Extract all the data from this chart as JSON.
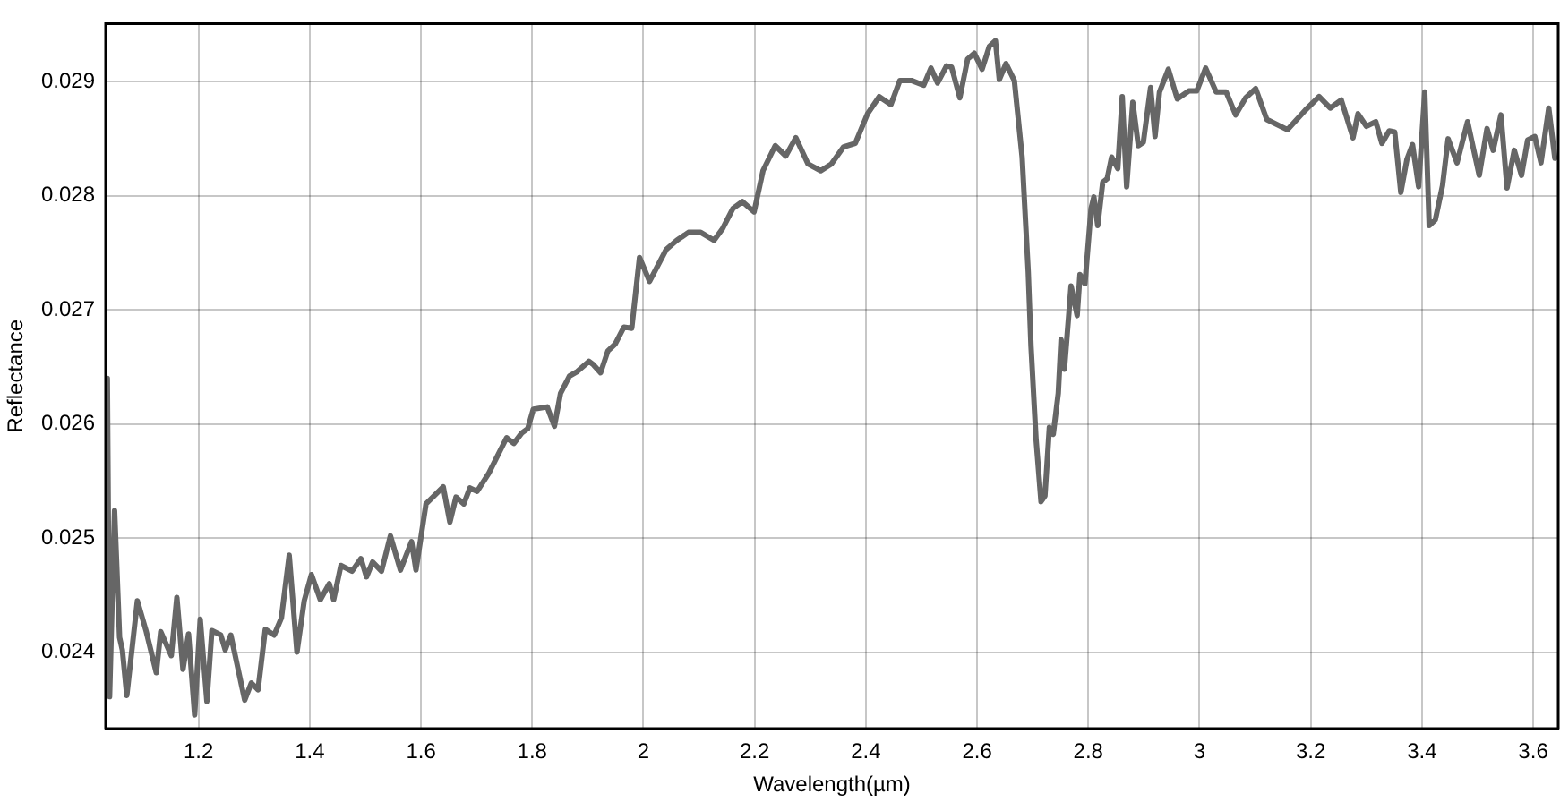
{
  "chart_data": {
    "type": "line",
    "xlabel": "Wavelength(µm)",
    "ylabel": "Reflectance",
    "grid": true,
    "legend": false,
    "marker": "none",
    "line_style": "solid",
    "xlim": [
      1.033,
      3.645
    ],
    "ylim": [
      0.02333,
      0.02951
    ],
    "xticks": [
      1.2,
      1.4,
      1.6,
      1.8,
      2,
      2.2,
      2.4,
      2.6,
      2.8,
      3,
      3.2,
      3.4,
      3.6
    ],
    "yticks": [
      0.024,
      0.025,
      0.026,
      0.027,
      0.028,
      0.029
    ],
    "series": [
      {
        "color": "#666666",
        "x": [
          1.036,
          1.04,
          1.049,
          1.058,
          1.063,
          1.071,
          1.09,
          1.106,
          1.124,
          1.132,
          1.151,
          1.161,
          1.172,
          1.182,
          1.193,
          1.203,
          1.215,
          1.224,
          1.24,
          1.248,
          1.258,
          1.283,
          1.295,
          1.307,
          1.32,
          1.336,
          1.349,
          1.363,
          1.377,
          1.39,
          1.403,
          1.419,
          1.435,
          1.443,
          1.456,
          1.476,
          1.492,
          1.502,
          1.513,
          1.529,
          1.545,
          1.563,
          1.583,
          1.591,
          1.609,
          1.64,
          1.652,
          1.663,
          1.677,
          1.688,
          1.701,
          1.722,
          1.754,
          1.767,
          1.781,
          1.792,
          1.802,
          1.827,
          1.84,
          1.851,
          1.867,
          1.881,
          1.902,
          1.91,
          1.923,
          1.936,
          1.949,
          1.965,
          1.979,
          1.993,
          2.011,
          2.041,
          2.06,
          2.081,
          2.103,
          2.127,
          2.142,
          2.161,
          2.178,
          2.199,
          2.215,
          2.237,
          2.256,
          2.274,
          2.296,
          2.319,
          2.338,
          2.36,
          2.381,
          2.403,
          2.424,
          2.445,
          2.461,
          2.483,
          2.504,
          2.517,
          2.529,
          2.545,
          2.554,
          2.569,
          2.583,
          2.595,
          2.609,
          2.622,
          2.633,
          2.64,
          2.652,
          2.667,
          2.681,
          2.692,
          2.697,
          2.706,
          2.715,
          2.722,
          2.73,
          2.737,
          2.746,
          2.751,
          2.757,
          2.769,
          2.78,
          2.785,
          2.794,
          2.805,
          2.81,
          2.817,
          2.826,
          2.834,
          2.842,
          2.853,
          2.861,
          2.869,
          2.88,
          2.89,
          2.899,
          2.912,
          2.92,
          2.928,
          2.944,
          2.96,
          2.981,
          2.995,
          3.011,
          3.03,
          3.048,
          3.065,
          3.083,
          3.101,
          3.121,
          3.158,
          3.19,
          3.215,
          3.235,
          3.255,
          3.276,
          3.285,
          3.3,
          3.317,
          3.328,
          3.341,
          3.351,
          3.362,
          3.373,
          3.383,
          3.394,
          3.405,
          3.413,
          3.424,
          3.437,
          3.447,
          3.463,
          3.482,
          3.503,
          3.517,
          3.528,
          3.542,
          3.553,
          3.566,
          3.579,
          3.59,
          3.603,
          3.614,
          3.628,
          3.639
        ],
        "values": [
          0.0264,
          0.02361,
          0.02524,
          0.02413,
          0.02402,
          0.02362,
          0.02445,
          0.02418,
          0.02382,
          0.02418,
          0.02397,
          0.02448,
          0.02385,
          0.02416,
          0.02345,
          0.02429,
          0.02357,
          0.02419,
          0.02415,
          0.02402,
          0.02415,
          0.02358,
          0.02373,
          0.02367,
          0.0242,
          0.02415,
          0.0243,
          0.02485,
          0.024,
          0.02445,
          0.02468,
          0.02446,
          0.0246,
          0.02446,
          0.02476,
          0.02471,
          0.02482,
          0.02466,
          0.02479,
          0.02471,
          0.02502,
          0.02472,
          0.02497,
          0.02472,
          0.0253,
          0.02545,
          0.02514,
          0.02536,
          0.0253,
          0.02544,
          0.02541,
          0.02557,
          0.02588,
          0.02583,
          0.02592,
          0.02596,
          0.02613,
          0.02615,
          0.02598,
          0.02627,
          0.02642,
          0.02646,
          0.02655,
          0.02652,
          0.02645,
          0.02664,
          0.0267,
          0.02685,
          0.02684,
          0.02746,
          0.02725,
          0.02753,
          0.02761,
          0.02768,
          0.02768,
          0.02761,
          0.02771,
          0.02789,
          0.02795,
          0.02786,
          0.02822,
          0.02844,
          0.02835,
          0.02851,
          0.02828,
          0.02822,
          0.02828,
          0.02843,
          0.02846,
          0.02872,
          0.02887,
          0.0288,
          0.02901,
          0.02901,
          0.02897,
          0.02912,
          0.02899,
          0.02914,
          0.02913,
          0.02886,
          0.0292,
          0.02925,
          0.02911,
          0.02931,
          0.02936,
          0.02902,
          0.02916,
          0.02901,
          0.02834,
          0.02733,
          0.02668,
          0.02587,
          0.02532,
          0.02537,
          0.02597,
          0.02591,
          0.02627,
          0.02674,
          0.02648,
          0.02721,
          0.02695,
          0.02731,
          0.02723,
          0.02789,
          0.02799,
          0.02774,
          0.02812,
          0.02815,
          0.02834,
          0.02824,
          0.02887,
          0.02808,
          0.02882,
          0.02844,
          0.02847,
          0.02895,
          0.02852,
          0.02891,
          0.02911,
          0.02885,
          0.02892,
          0.02892,
          0.02912,
          0.02891,
          0.02891,
          0.02871,
          0.02886,
          0.02894,
          0.02867,
          0.02858,
          0.02875,
          0.02887,
          0.02877,
          0.02884,
          0.02851,
          0.02872,
          0.02861,
          0.02865,
          0.02846,
          0.02857,
          0.02856,
          0.02803,
          0.02832,
          0.02845,
          0.02808,
          0.02891,
          0.02774,
          0.02779,
          0.02809,
          0.0285,
          0.02829,
          0.02865,
          0.02818,
          0.02859,
          0.0284,
          0.02871,
          0.02807,
          0.0284,
          0.02818,
          0.02849,
          0.02852,
          0.02829,
          0.02877,
          0.02833
        ]
      }
    ]
  }
}
